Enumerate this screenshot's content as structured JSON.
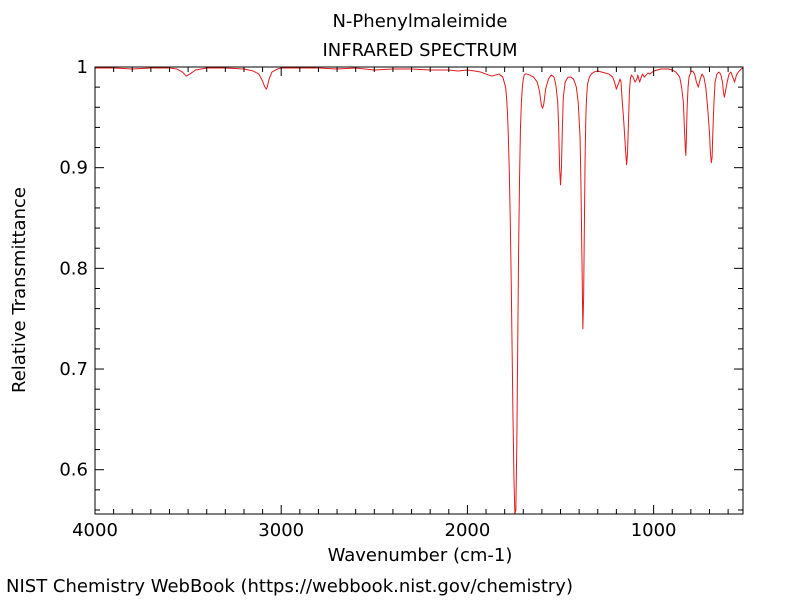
{
  "credit": "NIST Chemistry WebBook (https://webbook.nist.gov/chemistry)",
  "chart_data": {
    "type": "line",
    "title": "N-Phenylmaleimide",
    "subtitle": "INFRARED SPECTRUM",
    "xlabel": "Wavenumber (cm-1)",
    "ylabel": "Relative Transmittance",
    "xlim": [
      4000,
      520
    ],
    "ylim": [
      0.556,
      1.0
    ],
    "x_reversed": true,
    "grid": false,
    "line_color": "#e41a1c",
    "x_ticks": [
      4000,
      3000,
      2000,
      1000
    ],
    "x_tick_labels": [
      "4000",
      "3000",
      "2000",
      "1000"
    ],
    "y_ticks": [
      0.6,
      0.7,
      0.8,
      0.9,
      1.0
    ],
    "y_tick_labels": [
      "0.6",
      "0.7",
      "0.8",
      "0.9",
      "1"
    ],
    "series": [
      {
        "x": [
          4000,
          3900,
          3800,
          3700,
          3600,
          3560,
          3530,
          3510,
          3490,
          3460,
          3400,
          3300,
          3200,
          3150,
          3120,
          3100,
          3090,
          3080,
          3075,
          3065,
          3050,
          3020,
          3000,
          2950,
          2900,
          2800,
          2700,
          2600,
          2500,
          2400,
          2300,
          2200,
          2100,
          2050,
          2000,
          1960,
          1930,
          1900,
          1870,
          1850,
          1830,
          1810,
          1795,
          1790,
          1785,
          1780,
          1775,
          1770,
          1765,
          1760,
          1755,
          1750,
          1745,
          1740,
          1735,
          1730,
          1725,
          1720,
          1715,
          1710,
          1705,
          1700,
          1695,
          1690,
          1680,
          1665,
          1645,
          1625,
          1612,
          1603,
          1596,
          1590,
          1580,
          1565,
          1550,
          1535,
          1525,
          1515,
          1510,
          1505,
          1500,
          1495,
          1490,
          1485,
          1475,
          1460,
          1445,
          1430,
          1415,
          1405,
          1395,
          1390,
          1385,
          1380,
          1376,
          1372,
          1368,
          1364,
          1360,
          1355,
          1345,
          1335,
          1320,
          1300,
          1280,
          1260,
          1240,
          1220,
          1210,
          1200,
          1190,
          1180,
          1175,
          1170,
          1160,
          1150,
          1145,
          1140,
          1135,
          1130,
          1125,
          1120,
          1110,
          1100,
          1090,
          1085,
          1075,
          1070,
          1060,
          1050,
          1040,
          1030,
          1020,
          1000,
          980,
          960,
          940,
          920,
          900,
          880,
          860,
          850,
          840,
          835,
          830,
          827,
          824,
          820,
          815,
          810,
          800,
          790,
          780,
          770,
          760,
          750,
          740,
          730,
          720,
          710,
          700,
          695,
          690,
          686,
          682,
          676,
          670,
          660,
          650,
          640,
          630,
          625,
          620,
          615,
          605,
          595,
          585,
          575,
          565,
          555,
          545,
          530,
          520
        ],
        "y": [
          0.999,
          0.999,
          0.998,
          0.999,
          0.999,
          0.998,
          0.995,
          0.991,
          0.993,
          0.997,
          0.999,
          0.999,
          0.998,
          0.996,
          0.993,
          0.986,
          0.981,
          0.978,
          0.98,
          0.988,
          0.995,
          0.998,
          0.999,
          0.999,
          0.999,
          0.999,
          0.998,
          0.999,
          0.997,
          0.998,
          0.998,
          0.997,
          0.997,
          0.996,
          0.997,
          0.996,
          0.995,
          0.993,
          0.991,
          0.992,
          0.993,
          0.99,
          0.98,
          0.97,
          0.955,
          0.93,
          0.895,
          0.85,
          0.79,
          0.72,
          0.65,
          0.59,
          0.556,
          0.56,
          0.62,
          0.72,
          0.82,
          0.89,
          0.94,
          0.965,
          0.98,
          0.988,
          0.992,
          0.993,
          0.993,
          0.992,
          0.99,
          0.985,
          0.975,
          0.962,
          0.959,
          0.963,
          0.978,
          0.988,
          0.992,
          0.99,
          0.982,
          0.965,
          0.94,
          0.9,
          0.883,
          0.9,
          0.94,
          0.97,
          0.985,
          0.99,
          0.99,
          0.988,
          0.98,
          0.965,
          0.93,
          0.88,
          0.81,
          0.74,
          0.77,
          0.84,
          0.91,
          0.95,
          0.97,
          0.983,
          0.99,
          0.993,
          0.995,
          0.996,
          0.995,
          0.994,
          0.993,
          0.99,
          0.985,
          0.978,
          0.983,
          0.988,
          0.985,
          0.97,
          0.945,
          0.915,
          0.903,
          0.915,
          0.945,
          0.975,
          0.988,
          0.992,
          0.99,
          0.985,
          0.988,
          0.992,
          0.985,
          0.988,
          0.993,
          0.99,
          0.992,
          0.994,
          0.993,
          0.996,
          0.997,
          0.998,
          0.998,
          0.998,
          0.997,
          0.995,
          0.99,
          0.98,
          0.965,
          0.94,
          0.92,
          0.912,
          0.93,
          0.96,
          0.98,
          0.99,
          0.995,
          0.996,
          0.993,
          0.985,
          0.98,
          0.988,
          0.993,
          0.99,
          0.98,
          0.96,
          0.935,
          0.915,
          0.905,
          0.91,
          0.935,
          0.965,
          0.985,
          0.993,
          0.995,
          0.993,
          0.985,
          0.975,
          0.97,
          0.975,
          0.985,
          0.993,
          0.995,
          0.99,
          0.985,
          0.992,
          0.995,
          0.998,
          0.999
        ]
      }
    ]
  }
}
